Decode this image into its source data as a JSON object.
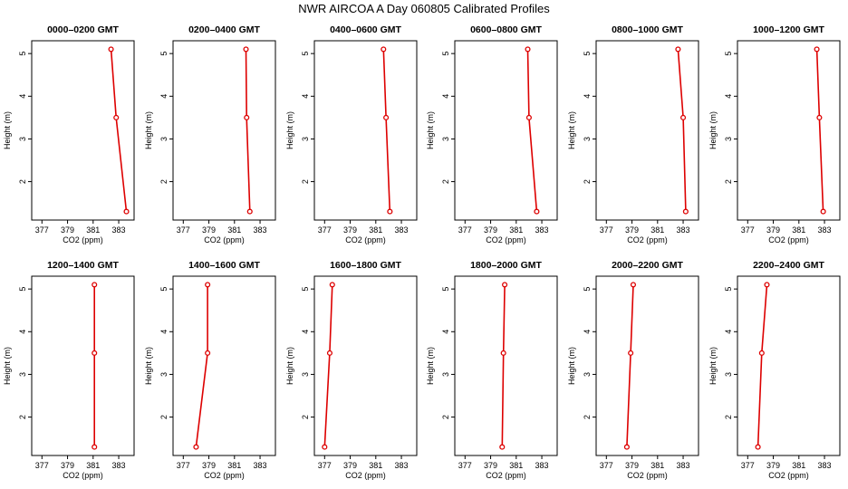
{
  "title": "NWR AIRCOA A  Day 060805  Calibrated Profiles",
  "colors": {
    "series": "#dd0000",
    "axis": "#000000",
    "background": "#ffffff"
  },
  "chart_data": [
    {
      "type": "line",
      "title": "0000–0200 GMT",
      "xlabel": "CO2 (ppm)",
      "ylabel": "Height (m)",
      "x_ticks": [
        377,
        379,
        381,
        383
      ],
      "y_ticks": [
        2,
        3,
        4,
        5
      ],
      "xlim": [
        376.2,
        384.2
      ],
      "ylim": [
        1.1,
        5.3
      ],
      "points": [
        {
          "x": 382.4,
          "y": 5.1
        },
        {
          "x": 382.8,
          "y": 3.5
        },
        {
          "x": 383.6,
          "y": 1.3
        }
      ]
    },
    {
      "type": "line",
      "title": "0200–0400 GMT",
      "xlabel": "CO2 (ppm)",
      "ylabel": "Height (m)",
      "x_ticks": [
        377,
        379,
        381,
        383
      ],
      "y_ticks": [
        2,
        3,
        4,
        5
      ],
      "xlim": [
        376.2,
        384.2
      ],
      "ylim": [
        1.1,
        5.3
      ],
      "points": [
        {
          "x": 381.9,
          "y": 5.1
        },
        {
          "x": 381.95,
          "y": 3.5
        },
        {
          "x": 382.2,
          "y": 1.3
        }
      ]
    },
    {
      "type": "line",
      "title": "0400–0600 GMT",
      "xlabel": "CO2 (ppm)",
      "ylabel": "Height (m)",
      "x_ticks": [
        377,
        379,
        381,
        383
      ],
      "y_ticks": [
        2,
        3,
        4,
        5
      ],
      "xlim": [
        376.2,
        384.2
      ],
      "ylim": [
        1.1,
        5.3
      ],
      "points": [
        {
          "x": 381.6,
          "y": 5.1
        },
        {
          "x": 381.8,
          "y": 3.5
        },
        {
          "x": 382.1,
          "y": 1.3
        }
      ]
    },
    {
      "type": "line",
      "title": "0600–0800 GMT",
      "xlabel": "CO2 (ppm)",
      "ylabel": "Height (m)",
      "x_ticks": [
        377,
        379,
        381,
        383
      ],
      "y_ticks": [
        2,
        3,
        4,
        5
      ],
      "xlim": [
        376.2,
        384.2
      ],
      "ylim": [
        1.1,
        5.3
      ],
      "points": [
        {
          "x": 381.9,
          "y": 5.1
        },
        {
          "x": 382.0,
          "y": 3.5
        },
        {
          "x": 382.6,
          "y": 1.3
        }
      ]
    },
    {
      "type": "line",
      "title": "0800–1000 GMT",
      "xlabel": "CO2 (ppm)",
      "ylabel": "Height (m)",
      "x_ticks": [
        377,
        379,
        381,
        383
      ],
      "y_ticks": [
        2,
        3,
        4,
        5
      ],
      "xlim": [
        376.2,
        384.2
      ],
      "ylim": [
        1.1,
        5.3
      ],
      "points": [
        {
          "x": 382.6,
          "y": 5.1
        },
        {
          "x": 383.0,
          "y": 3.5
        },
        {
          "x": 383.2,
          "y": 1.3
        }
      ]
    },
    {
      "type": "line",
      "title": "1000–1200 GMT",
      "xlabel": "CO2 (ppm)",
      "ylabel": "Height (m)",
      "x_ticks": [
        377,
        379,
        381,
        383
      ],
      "y_ticks": [
        2,
        3,
        4,
        5
      ],
      "xlim": [
        376.2,
        384.2
      ],
      "ylim": [
        1.1,
        5.3
      ],
      "points": [
        {
          "x": 382.4,
          "y": 5.1
        },
        {
          "x": 382.6,
          "y": 3.5
        },
        {
          "x": 382.9,
          "y": 1.3
        }
      ]
    },
    {
      "type": "line",
      "title": "1200–1400 GMT",
      "xlabel": "CO2 (ppm)",
      "ylabel": "Height (m)",
      "x_ticks": [
        377,
        379,
        381,
        383
      ],
      "y_ticks": [
        2,
        3,
        4,
        5
      ],
      "xlim": [
        376.2,
        384.2
      ],
      "ylim": [
        1.1,
        5.3
      ],
      "points": [
        {
          "x": 381.1,
          "y": 5.1
        },
        {
          "x": 381.1,
          "y": 3.5
        },
        {
          "x": 381.1,
          "y": 1.3
        }
      ]
    },
    {
      "type": "line",
      "title": "1400–1600 GMT",
      "xlabel": "CO2 (ppm)",
      "ylabel": "Height (m)",
      "x_ticks": [
        377,
        379,
        381,
        383
      ],
      "y_ticks": [
        2,
        3,
        4,
        5
      ],
      "xlim": [
        376.2,
        384.2
      ],
      "ylim": [
        1.1,
        5.3
      ],
      "points": [
        {
          "x": 378.9,
          "y": 5.1
        },
        {
          "x": 378.9,
          "y": 3.5
        },
        {
          "x": 378.0,
          "y": 1.3
        }
      ]
    },
    {
      "type": "line",
      "title": "1600–1800 GMT",
      "xlabel": "CO2 (ppm)",
      "ylabel": "Height (m)",
      "x_ticks": [
        377,
        379,
        381,
        383
      ],
      "y_ticks": [
        2,
        3,
        4,
        5
      ],
      "xlim": [
        376.2,
        384.2
      ],
      "ylim": [
        1.1,
        5.3
      ],
      "points": [
        {
          "x": 377.6,
          "y": 5.1
        },
        {
          "x": 377.4,
          "y": 3.5
        },
        {
          "x": 377.0,
          "y": 1.3
        }
      ]
    },
    {
      "type": "line",
      "title": "1800–2000 GMT",
      "xlabel": "CO2 (ppm)",
      "ylabel": "Height (m)",
      "x_ticks": [
        377,
        379,
        381,
        383
      ],
      "y_ticks": [
        2,
        3,
        4,
        5
      ],
      "xlim": [
        376.2,
        384.2
      ],
      "ylim": [
        1.1,
        5.3
      ],
      "points": [
        {
          "x": 380.1,
          "y": 5.1
        },
        {
          "x": 380.0,
          "y": 3.5
        },
        {
          "x": 379.9,
          "y": 1.3
        }
      ]
    },
    {
      "type": "line",
      "title": "2000–2200 GMT",
      "xlabel": "CO2 (ppm)",
      "ylabel": "Height (m)",
      "x_ticks": [
        377,
        379,
        381,
        383
      ],
      "y_ticks": [
        2,
        3,
        4,
        5
      ],
      "xlim": [
        376.2,
        384.2
      ],
      "ylim": [
        1.1,
        5.3
      ],
      "points": [
        {
          "x": 379.1,
          "y": 5.1
        },
        {
          "x": 378.9,
          "y": 3.5
        },
        {
          "x": 378.6,
          "y": 1.3
        }
      ]
    },
    {
      "type": "line",
      "title": "2200–2400 GMT",
      "xlabel": "CO2 (ppm)",
      "ylabel": "Height (m)",
      "x_ticks": [
        377,
        379,
        381,
        383
      ],
      "y_ticks": [
        2,
        3,
        4,
        5
      ],
      "xlim": [
        376.2,
        384.2
      ],
      "ylim": [
        1.1,
        5.3
      ],
      "points": [
        {
          "x": 378.5,
          "y": 5.1
        },
        {
          "x": 378.1,
          "y": 3.5
        },
        {
          "x": 377.8,
          "y": 1.3
        }
      ]
    }
  ]
}
